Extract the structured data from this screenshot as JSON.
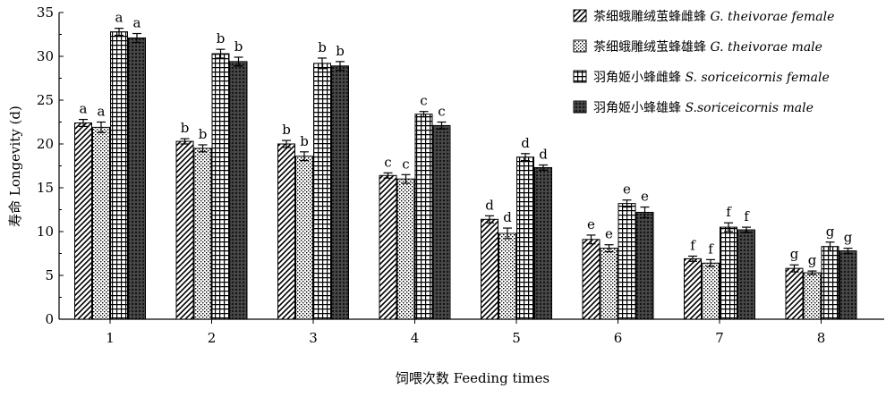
{
  "chart_data": {
    "type": "bar",
    "xlabel": "饲喂次数 Feeding times",
    "ylabel": "寿命 Longevity (d)",
    "ylim": [
      0,
      35
    ],
    "yticks": [
      0,
      5,
      10,
      15,
      20,
      25,
      30,
      35
    ],
    "categories": [
      "1",
      "2",
      "3",
      "4",
      "5",
      "6",
      "7",
      "8"
    ],
    "legend_position": "top-right",
    "grid": false,
    "series": [
      {
        "name": "茶细蛾雕绒茧蜂雌蜂 G. theivorae female",
        "name_cn": "茶细蛾雕绒茧蜂雌蜂",
        "name_latin": "G. theivorae",
        "name_sex": "female",
        "pattern": "diagonal",
        "values": [
          22.4,
          20.3,
          20.0,
          16.4,
          11.4,
          9.1,
          6.9,
          5.8
        ],
        "errors": [
          0.4,
          0.3,
          0.4,
          0.3,
          0.4,
          0.5,
          0.3,
          0.4
        ],
        "labels": [
          "a",
          "b",
          "b",
          "c",
          "d",
          "e",
          "f",
          "g"
        ]
      },
      {
        "name": "茶细蛾雕绒茧蜂雄蜂 G. theivorae male",
        "name_cn": "茶细蛾雕绒茧蜂雄蜂",
        "name_latin": "G. theivorae",
        "name_sex": "male",
        "pattern": "dots",
        "values": [
          21.9,
          19.5,
          18.6,
          16.0,
          9.8,
          8.1,
          6.4,
          5.3
        ],
        "errors": [
          0.6,
          0.4,
          0.5,
          0.5,
          0.6,
          0.4,
          0.4,
          0.2
        ],
        "labels": [
          "a",
          "b",
          "b",
          "c",
          "d",
          "e",
          "f",
          "g"
        ]
      },
      {
        "name": "羽角姬小蜂雌蜂 S. soriceicornis female",
        "name_cn": "羽角姬小蜂雌蜂",
        "name_latin": "S. soriceicornis",
        "name_sex": "female",
        "pattern": "grid",
        "values": [
          32.8,
          30.3,
          29.2,
          23.4,
          18.5,
          13.2,
          10.5,
          8.3
        ],
        "errors": [
          0.4,
          0.5,
          0.6,
          0.3,
          0.4,
          0.4,
          0.5,
          0.5
        ],
        "labels": [
          "a",
          "b",
          "b",
          "c",
          "d",
          "e",
          "f",
          "g"
        ]
      },
      {
        "name": "羽角姬小蜂雄蜂 S.soriceicornis male",
        "name_cn": "羽角姬小蜂雄蜂",
        "name_latin": "S.soriceicornis",
        "name_sex": "male",
        "pattern": "crosshatch",
        "values": [
          32.1,
          29.4,
          28.9,
          22.1,
          17.3,
          12.2,
          10.2,
          7.8
        ],
        "errors": [
          0.5,
          0.5,
          0.5,
          0.4,
          0.3,
          0.6,
          0.3,
          0.3
        ],
        "labels": [
          "a",
          "b",
          "b",
          "c",
          "d",
          "e",
          "f",
          "g"
        ]
      }
    ]
  }
}
